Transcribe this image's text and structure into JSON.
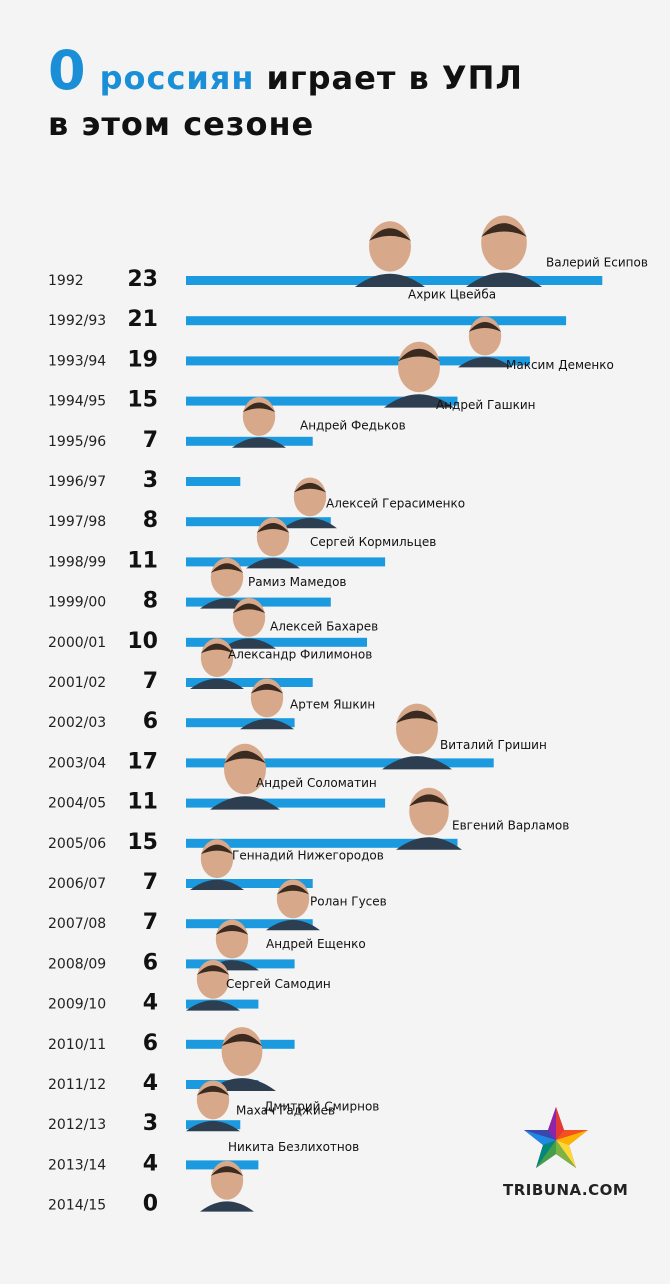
{
  "header": {
    "count": "0",
    "highlight": "россиян",
    "rest": "играет в УПЛ",
    "line2": "в этом сезоне"
  },
  "chart_data": {
    "type": "bar",
    "orientation": "horizontal",
    "title": "0 россиян играет в УПЛ в этом сезоне",
    "categories": [
      "1992",
      "1992/93",
      "1993/94",
      "1994/95",
      "1995/96",
      "1996/97",
      "1997/98",
      "1998/99",
      "1999/00",
      "2000/01",
      "2001/02",
      "2002/03",
      "2003/04",
      "2004/05",
      "2005/06",
      "2006/07",
      "2007/08",
      "2008/09",
      "2009/10",
      "2010/11",
      "2011/12",
      "2012/13",
      "2013/14",
      "2014/15"
    ],
    "values": [
      23,
      21,
      19,
      15,
      7,
      3,
      8,
      11,
      8,
      10,
      7,
      6,
      17,
      11,
      15,
      7,
      7,
      6,
      4,
      6,
      4,
      3,
      4,
      0
    ],
    "players": [
      {
        "season": "1992",
        "name": "Валерий Есипов"
      },
      {
        "season": "1992",
        "name": "Ахрик Цвейба"
      },
      {
        "season": "1993/94",
        "name": "Максим Деменко"
      },
      {
        "season": "1994/95",
        "name": "Андрей Гашкин"
      },
      {
        "season": "1995/96",
        "name": "Андрей Федьков"
      },
      {
        "season": "1997/98",
        "name": "Алексей Герасименко"
      },
      {
        "season": "1998/99",
        "name": "Сергей Кормильцев"
      },
      {
        "season": "1999/00",
        "name": "Рамиз Мамедов"
      },
      {
        "season": "2000/01",
        "name": "Алексей Бахарев"
      },
      {
        "season": "2001/02",
        "name": "Александр Филимонов"
      },
      {
        "season": "2002/03",
        "name": "Артем Яшкин"
      },
      {
        "season": "2003/04",
        "name": "Виталий Гришин"
      },
      {
        "season": "2004/05",
        "name": "Андрей Соломатин"
      },
      {
        "season": "2005/06",
        "name": "Евгений Варламов"
      },
      {
        "season": "2006/07",
        "name": "Геннадий Нижегородов"
      },
      {
        "season": "2007/08",
        "name": "Ролан Гусев"
      },
      {
        "season": "2008/09",
        "name": "Андрей Ещенко"
      },
      {
        "season": "2009/10",
        "name": "Сергей Самодин"
      },
      {
        "season": "2011/12",
        "name": "Дмитрий Смирнов"
      },
      {
        "season": "2012/13",
        "name": "Махач Гаджиев"
      },
      {
        "season": "2014/15",
        "name": "Никита Безлихотнов"
      }
    ],
    "bar_color": "#1c9ae0",
    "grid": false
  },
  "logo": {
    "text": "TRIBUNA.COM"
  }
}
